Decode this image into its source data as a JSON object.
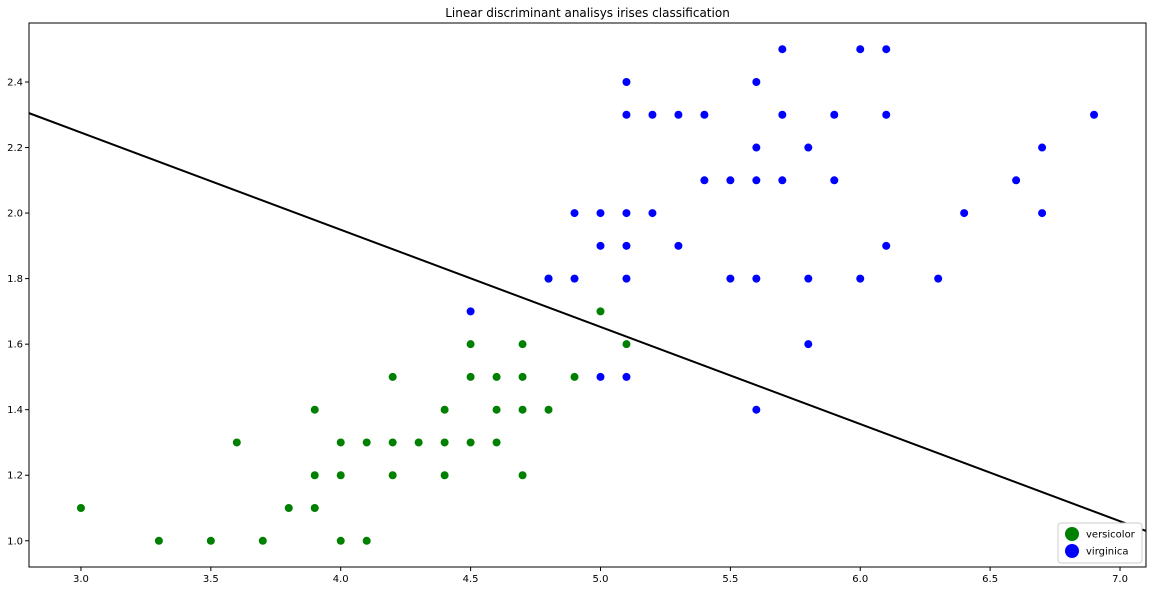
{
  "chart_data": {
    "type": "scatter",
    "title": "Linear discriminant analisys irises classification",
    "xlabel": "",
    "ylabel": "",
    "xlim": [
      2.8,
      7.1
    ],
    "ylim": [
      0.92,
      2.58
    ],
    "xticks": [
      "3.0",
      "3.5",
      "4.0",
      "4.5",
      "5.0",
      "5.5",
      "6.0",
      "6.5",
      "7.0"
    ],
    "yticks": [
      "1.0",
      "1.2",
      "1.4",
      "1.6",
      "1.8",
      "2.0",
      "2.2",
      "2.4"
    ],
    "grid": false,
    "legend_position": "bottom-right",
    "series": [
      {
        "name": "versicolor",
        "color": "#008000",
        "points": [
          [
            3.0,
            1.1
          ],
          [
            3.3,
            1.0
          ],
          [
            3.5,
            1.0
          ],
          [
            3.6,
            1.3
          ],
          [
            3.7,
            1.0
          ],
          [
            3.8,
            1.1
          ],
          [
            3.9,
            1.1
          ],
          [
            3.9,
            1.2
          ],
          [
            3.9,
            1.4
          ],
          [
            4.0,
            1.0
          ],
          [
            4.0,
            1.2
          ],
          [
            4.0,
            1.3
          ],
          [
            4.1,
            1.0
          ],
          [
            4.1,
            1.3
          ],
          [
            4.2,
            1.2
          ],
          [
            4.2,
            1.3
          ],
          [
            4.2,
            1.5
          ],
          [
            4.3,
            1.3
          ],
          [
            4.4,
            1.2
          ],
          [
            4.4,
            1.3
          ],
          [
            4.4,
            1.4
          ],
          [
            4.5,
            1.3
          ],
          [
            4.5,
            1.5
          ],
          [
            4.5,
            1.6
          ],
          [
            4.6,
            1.3
          ],
          [
            4.6,
            1.4
          ],
          [
            4.6,
            1.5
          ],
          [
            4.7,
            1.2
          ],
          [
            4.7,
            1.4
          ],
          [
            4.7,
            1.5
          ],
          [
            4.7,
            1.6
          ],
          [
            4.8,
            1.4
          ],
          [
            4.8,
            1.8
          ],
          [
            4.9,
            1.5
          ],
          [
            5.0,
            1.7
          ],
          [
            5.1,
            1.6
          ]
        ]
      },
      {
        "name": "virginica",
        "color": "#0000ff",
        "points": [
          [
            4.5,
            1.7
          ],
          [
            4.8,
            1.8
          ],
          [
            4.9,
            1.8
          ],
          [
            4.9,
            2.0
          ],
          [
            5.0,
            1.5
          ],
          [
            5.0,
            1.9
          ],
          [
            5.0,
            2.0
          ],
          [
            5.1,
            1.5
          ],
          [
            5.1,
            1.8
          ],
          [
            5.1,
            1.9
          ],
          [
            5.1,
            2.0
          ],
          [
            5.1,
            2.3
          ],
          [
            5.1,
            2.4
          ],
          [
            5.2,
            2.0
          ],
          [
            5.2,
            2.3
          ],
          [
            5.3,
            1.9
          ],
          [
            5.3,
            2.3
          ],
          [
            5.4,
            2.1
          ],
          [
            5.4,
            2.3
          ],
          [
            5.5,
            1.8
          ],
          [
            5.5,
            2.1
          ],
          [
            5.6,
            1.4
          ],
          [
            5.6,
            1.8
          ],
          [
            5.6,
            2.1
          ],
          [
            5.6,
            2.2
          ],
          [
            5.6,
            2.4
          ],
          [
            5.7,
            2.1
          ],
          [
            5.7,
            2.3
          ],
          [
            5.7,
            2.5
          ],
          [
            5.8,
            1.6
          ],
          [
            5.8,
            1.8
          ],
          [
            5.8,
            2.2
          ],
          [
            5.9,
            2.1
          ],
          [
            5.9,
            2.3
          ],
          [
            6.0,
            1.8
          ],
          [
            6.0,
            2.5
          ],
          [
            6.1,
            1.9
          ],
          [
            6.1,
            2.3
          ],
          [
            6.1,
            2.5
          ],
          [
            6.3,
            1.8
          ],
          [
            6.4,
            2.0
          ],
          [
            6.6,
            2.1
          ],
          [
            6.7,
            2.0
          ],
          [
            6.7,
            2.2
          ],
          [
            6.9,
            2.3
          ]
        ]
      }
    ],
    "decision_line": {
      "color": "#000000",
      "points": [
        [
          2.8,
          2.305
        ],
        [
          7.1,
          1.03
        ]
      ]
    }
  }
}
